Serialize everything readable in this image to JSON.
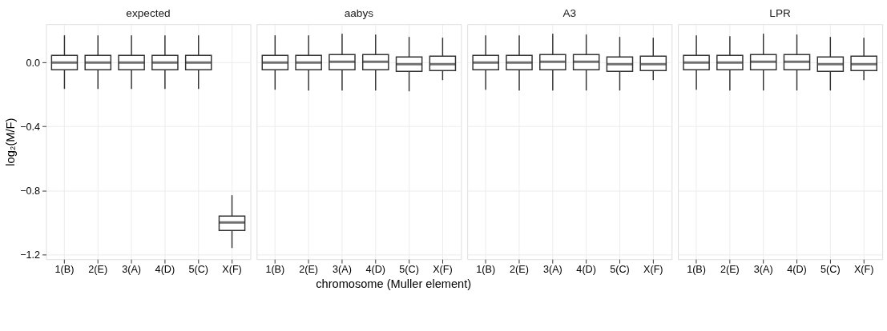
{
  "chart_data": [
    {
      "type": "box",
      "title": "expected",
      "ylabel": "log₂(M/F)",
      "categories": [
        "1(B)",
        "2(E)",
        "3(A)",
        "4(D)",
        "5(C)",
        "X(F)"
      ],
      "ylim": [
        -1.23,
        0.24
      ],
      "yticks": [
        {
          "value": 0,
          "label": "0.0"
        },
        -0.4,
        -0.8,
        -1.2
      ],
      "grid": true,
      "boxes": [
        {
          "low": -0.165,
          "q1": -0.045,
          "median": 0,
          "q3": 0.045,
          "high": 0.17
        },
        {
          "low": -0.165,
          "q1": -0.045,
          "median": 0,
          "q3": 0.045,
          "high": 0.17
        },
        {
          "low": -0.165,
          "q1": -0.045,
          "median": 0,
          "q3": 0.045,
          "high": 0.17
        },
        {
          "low": -0.165,
          "q1": -0.045,
          "median": 0,
          "q3": 0.045,
          "high": 0.17
        },
        {
          "low": -0.165,
          "q1": -0.045,
          "median": 0,
          "q3": 0.045,
          "high": 0.17
        },
        {
          "low": -1.16,
          "q1": -1.05,
          "median": -1.0,
          "q3": -0.96,
          "high": -0.83
        }
      ]
    },
    {
      "type": "box",
      "title": "aabys",
      "xlabel": "chromosome (Muller element)",
      "categories": [
        "1(B)",
        "2(E)",
        "3(A)",
        "4(D)",
        "5(C)",
        "X(F)"
      ],
      "ylim": [
        -1.23,
        0.24
      ],
      "yticks": [
        0,
        -0.4,
        -0.8,
        -1.2
      ],
      "grid": true,
      "tick_labels": "x",
      "boxes": [
        {
          "low": -0.17,
          "q1": -0.045,
          "median": 0,
          "q3": 0.045,
          "high": 0.17
        },
        {
          "low": -0.175,
          "q1": -0.045,
          "median": 0,
          "q3": 0.045,
          "high": 0.17
        },
        {
          "low": -0.175,
          "q1": -0.045,
          "median": 0.005,
          "q3": 0.05,
          "high": 0.18
        },
        {
          "low": -0.175,
          "q1": -0.045,
          "median": 0.005,
          "q3": 0.05,
          "high": 0.175
        },
        {
          "low": -0.18,
          "q1": -0.055,
          "median": -0.01,
          "q3": 0.035,
          "high": 0.16
        },
        {
          "low": -0.11,
          "q1": -0.05,
          "median": -0.01,
          "q3": 0.04,
          "high": 0.155
        }
      ]
    },
    {
      "type": "box",
      "title": "A3",
      "categories": [
        "1(B)",
        "2(E)",
        "3(A)",
        "4(D)",
        "5(C)",
        "X(F)"
      ],
      "ylim": [
        -1.23,
        0.24
      ],
      "yticks": [
        0,
        -0.4,
        -0.8,
        -1.2
      ],
      "grid": true,
      "tick_labels": "x",
      "boxes": [
        {
          "low": -0.17,
          "q1": -0.045,
          "median": 0,
          "q3": 0.045,
          "high": 0.17
        },
        {
          "low": -0.175,
          "q1": -0.045,
          "median": 0,
          "q3": 0.045,
          "high": 0.17
        },
        {
          "low": -0.175,
          "q1": -0.045,
          "median": 0.005,
          "q3": 0.05,
          "high": 0.18
        },
        {
          "low": -0.175,
          "q1": -0.045,
          "median": 0.005,
          "q3": 0.05,
          "high": 0.175
        },
        {
          "low": -0.175,
          "q1": -0.055,
          "median": -0.01,
          "q3": 0.035,
          "high": 0.16
        },
        {
          "low": -0.11,
          "q1": -0.05,
          "median": -0.01,
          "q3": 0.04,
          "high": 0.155
        }
      ]
    },
    {
      "type": "box",
      "title": "LPR",
      "categories": [
        "1(B)",
        "2(E)",
        "3(A)",
        "4(D)",
        "5(C)",
        "X(F)"
      ],
      "ylim": [
        -1.23,
        0.24
      ],
      "yticks": [
        0,
        -0.4,
        -0.8,
        -1.2
      ],
      "grid": true,
      "tick_labels": "x",
      "boxes": [
        {
          "low": -0.17,
          "q1": -0.045,
          "median": 0,
          "q3": 0.045,
          "high": 0.17
        },
        {
          "low": -0.175,
          "q1": -0.045,
          "median": 0,
          "q3": 0.045,
          "high": 0.165
        },
        {
          "low": -0.175,
          "q1": -0.045,
          "median": 0.005,
          "q3": 0.05,
          "high": 0.18
        },
        {
          "low": -0.175,
          "q1": -0.045,
          "median": 0.005,
          "q3": 0.05,
          "high": 0.175
        },
        {
          "low": -0.175,
          "q1": -0.055,
          "median": -0.01,
          "q3": 0.035,
          "high": 0.16
        },
        {
          "low": -0.11,
          "q1": -0.05,
          "median": -0.01,
          "q3": 0.04,
          "high": 0.155
        }
      ]
    }
  ]
}
